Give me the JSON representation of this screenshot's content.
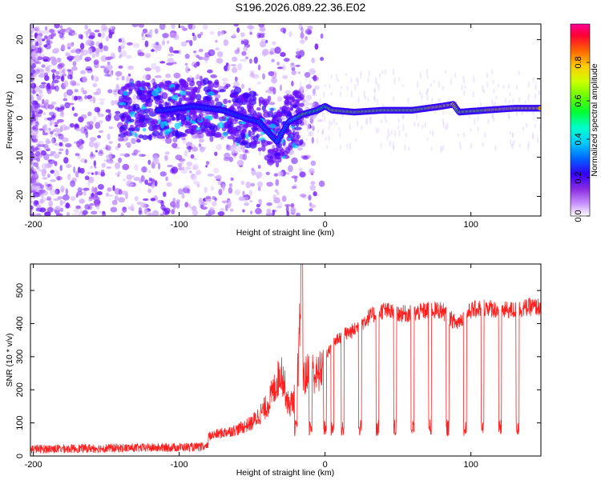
{
  "title": "S196.2026.089.22.36.E02",
  "chart_data": [
    {
      "type": "heatmap",
      "xlabel": "Height of straight line (km)",
      "ylabel": "Frequency (Hz)",
      "xlim": [
        -202,
        148
      ],
      "ylim": [
        -25,
        24
      ],
      "xticks": [
        -200,
        -100,
        0,
        100
      ],
      "yticks": [
        -20,
        -10,
        0,
        10,
        20
      ],
      "colorbar": {
        "label": "Normalized spectral amplitude",
        "range": [
          0.0,
          1.0
        ],
        "ticks": [
          "0.0",
          "0.2",
          "0.4",
          "0.6",
          "0.8"
        ]
      },
      "ridge": {
        "x": [
          -110,
          -90,
          -70,
          -55,
          -45,
          -38,
          -33,
          -25,
          -15,
          -5,
          0,
          5,
          20,
          40,
          60,
          80,
          88,
          92,
          110,
          130,
          148
        ],
        "freq": [
          2,
          3,
          2,
          0,
          -1,
          -4,
          -6,
          -1,
          1,
          2,
          3,
          2,
          1.5,
          2,
          2,
          3,
          3.5,
          1.5,
          2,
          2.5,
          2.5
        ],
        "amplitude": [
          0.3,
          0.3,
          0.4,
          0.5,
          0.45,
          0.4,
          0.35,
          0.5,
          0.8,
          0.7,
          0.75,
          0.8,
          0.85,
          0.8,
          0.8,
          0.9,
          0.9,
          0.8,
          0.85,
          0.9,
          0.9
        ]
      }
    },
    {
      "type": "line",
      "xlabel": "Height of straight line (km)",
      "ylabel": "SNR (10 * v/v)",
      "xlim": [
        -202,
        148
      ],
      "ylim": [
        0,
        580
      ],
      "xticks": [
        -200,
        -100,
        0,
        100
      ],
      "yticks": [
        0,
        100,
        200,
        300,
        400,
        500
      ],
      "series": [
        {
          "name": "SNR",
          "color": "#ff2020",
          "x": [
            -202,
            -180,
            -160,
            -140,
            -120,
            -100,
            -90,
            -80,
            -70,
            -60,
            -50,
            -40,
            -35,
            -30,
            -25,
            -20,
            -18,
            -16,
            -15,
            -12,
            -10,
            -5,
            0,
            5,
            10,
            15,
            20,
            25,
            30,
            35,
            40,
            50,
            60,
            70,
            80,
            90,
            100,
            110,
            120,
            130,
            140,
            148
          ],
          "y": [
            20,
            20,
            22,
            25,
            30,
            40,
            50,
            60,
            70,
            80,
            100,
            150,
            200,
            260,
            150,
            180,
            300,
            580,
            230,
            250,
            260,
            240,
            290,
            340,
            360,
            370,
            380,
            400,
            420,
            430,
            440,
            430,
            430,
            440,
            440,
            400,
            440,
            450,
            440,
            440,
            450,
            450
          ]
        }
      ],
      "dips_x": [
        -20,
        -10,
        0,
        5,
        12,
        24,
        36,
        48,
        60,
        72,
        84,
        96,
        108,
        120,
        132
      ]
    }
  ]
}
